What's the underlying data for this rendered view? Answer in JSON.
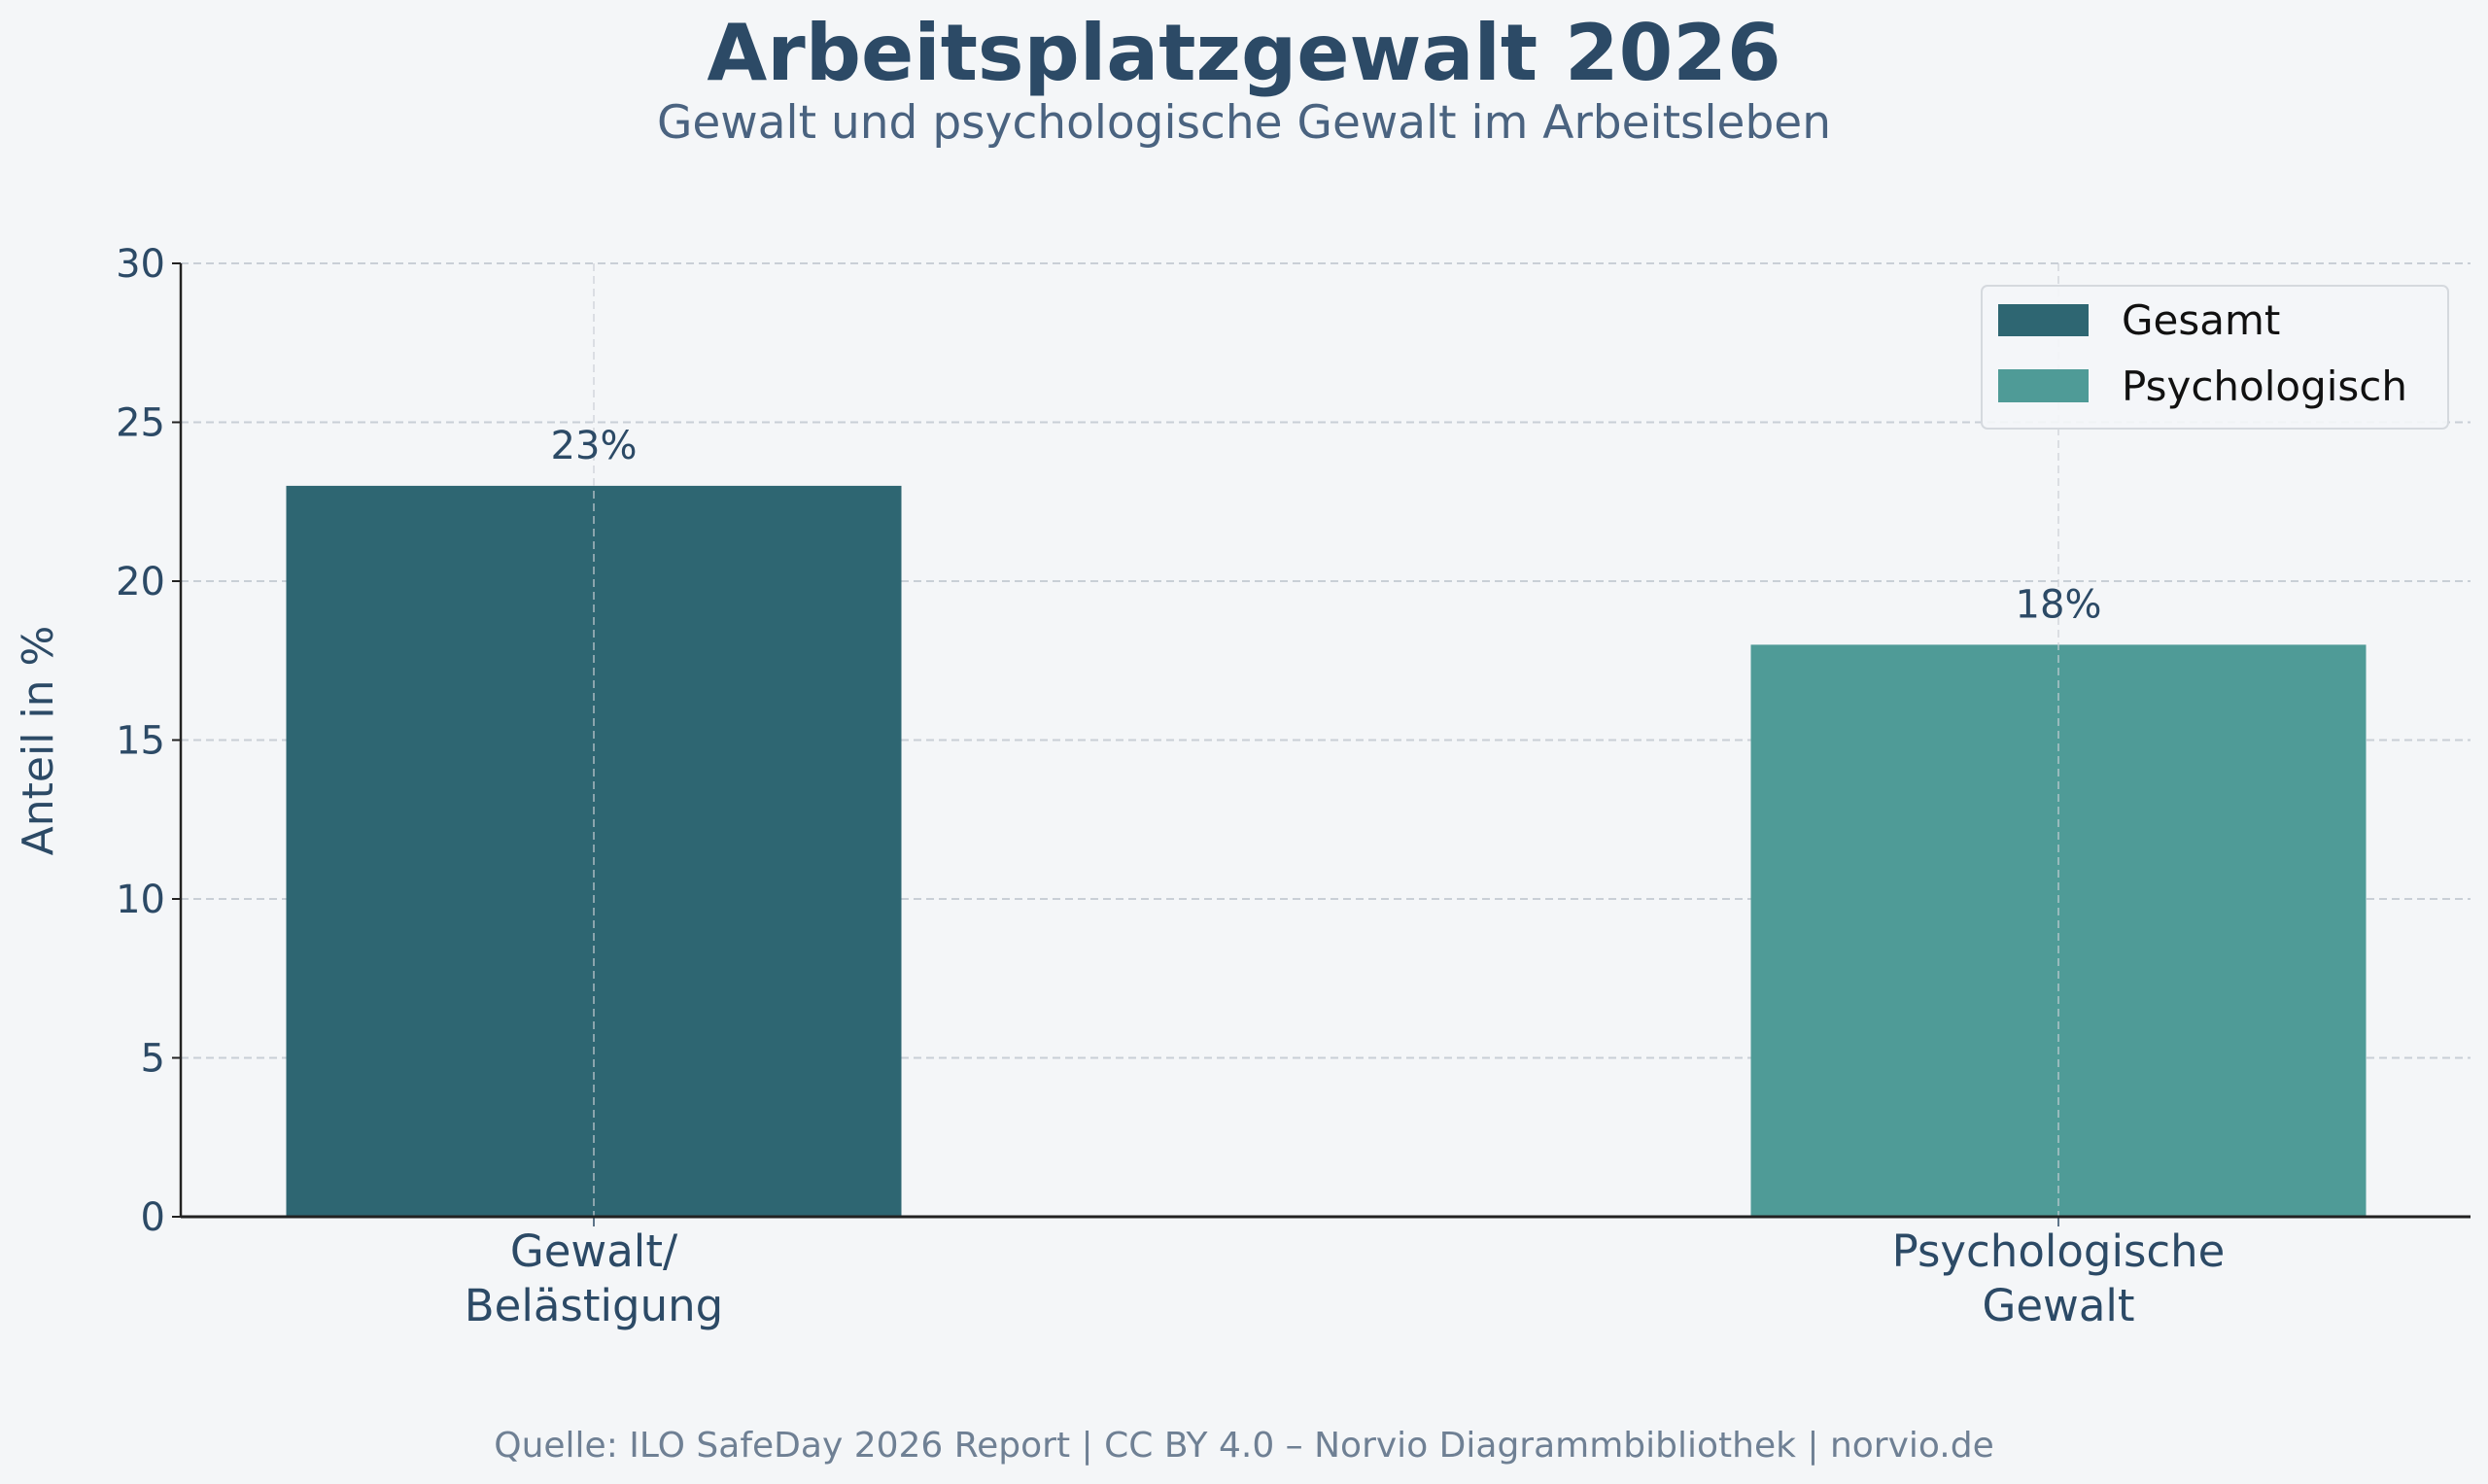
{
  "chart_data": {
    "type": "bar",
    "title": "Arbeitsplatzgewalt 2026",
    "subtitle": "Gewalt und psychologische Gewalt im Arbeitsleben",
    "xlabel": "",
    "ylabel": "Anteil in %",
    "ylim": [
      0,
      30
    ],
    "yticks": [
      "0",
      "5",
      "10",
      "15",
      "20",
      "25",
      "30"
    ],
    "categories": [
      "Gewalt/\nBelästigung",
      "Psychologische\nGewalt"
    ],
    "category_lines": [
      [
        "Gewalt/",
        "Belästigung"
      ],
      [
        "Psychologische",
        "Gewalt"
      ]
    ],
    "values": [
      23,
      18
    ],
    "data_labels": [
      "23%",
      "18%"
    ],
    "bar_colors": [
      "#2e6672",
      "#4f9b97"
    ],
    "legend": {
      "position": "top-right",
      "entries": [
        {
          "label": "Gesamt",
          "color": "#2e6672"
        },
        {
          "label": "Psychologisch",
          "color": "#4f9b97"
        }
      ]
    },
    "grid": true,
    "source": "Quelle: ILO SafeDay 2026 Report | CC BY 4.0 – Norvio Diagrammbibliothek | norvio.de"
  },
  "colors": {
    "background": "#f4f6f8",
    "title": "#2c4a66",
    "subtitle": "#4a6380",
    "text": "#2c4a66",
    "source": "#6f8094"
  }
}
